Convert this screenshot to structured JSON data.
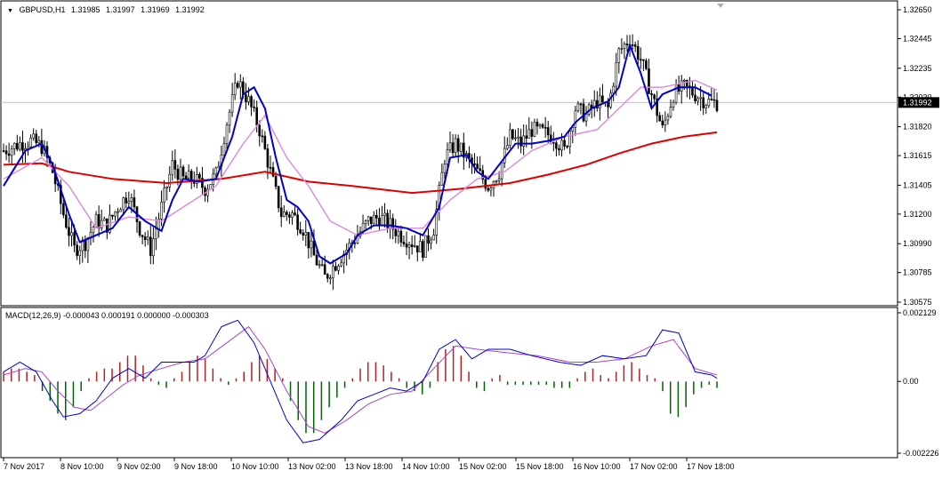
{
  "chart_data": [
    {
      "type": "candlestick",
      "panel": "price",
      "symbol": "GBPUSD,H1",
      "ohlc": {
        "open": "1.31985",
        "high": "1.31997",
        "low": "1.31969",
        "close": "1.31992"
      },
      "current_price_label": "1.31992",
      "y_ticks": [
        "1.32650",
        "1.32445",
        "1.32235",
        "1.32030",
        "1.31820",
        "1.31615",
        "1.31405",
        "1.31200",
        "1.30990",
        "1.30785",
        "1.30575"
      ],
      "ylim": [
        1.30575,
        1.3265
      ],
      "x_ticks": [
        "7 Nov 2017",
        "8 Nov 10:00",
        "9 Nov 02:00",
        "9 Nov 18:00",
        "10 Nov 10:00",
        "13 Nov 02:00",
        "13 Nov 18:00",
        "14 Nov 10:00",
        "15 Nov 02:00",
        "15 Nov 18:00",
        "16 Nov 10:00",
        "17 Nov 02:00",
        "17 Nov 18:00"
      ],
      "close_path": [
        [
          0,
          1.3165
        ],
        [
          6,
          1.317
        ],
        [
          10,
          1.3172
        ],
        [
          14,
          1.3168
        ],
        [
          18,
          1.315
        ],
        [
          22,
          1.312
        ],
        [
          26,
          1.3095
        ],
        [
          30,
          1.31
        ],
        [
          34,
          1.3115
        ],
        [
          38,
          1.3112
        ],
        [
          42,
          1.3125
        ],
        [
          46,
          1.3135
        ],
        [
          50,
          1.311
        ],
        [
          54,
          1.3095
        ],
        [
          58,
          1.3125
        ],
        [
          62,
          1.3155
        ],
        [
          66,
          1.3145
        ],
        [
          70,
          1.3145
        ],
        [
          74,
          1.3138
        ],
        [
          78,
          1.3148
        ],
        [
          82,
          1.3185
        ],
        [
          86,
          1.3215
        ],
        [
          90,
          1.32
        ],
        [
          94,
          1.318
        ],
        [
          98,
          1.315
        ],
        [
          102,
          1.312
        ],
        [
          106,
          1.312
        ],
        [
          110,
          1.311
        ],
        [
          114,
          1.309
        ],
        [
          118,
          1.3075
        ],
        [
          122,
          1.3085
        ],
        [
          126,
          1.3095
        ],
        [
          130,
          1.3105
        ],
        [
          134,
          1.3115
        ],
        [
          138,
          1.3118
        ],
        [
          142,
          1.3112
        ],
        [
          146,
          1.3105
        ],
        [
          150,
          1.31
        ],
        [
          154,
          1.3095
        ],
        [
          158,
          1.311
        ],
        [
          162,
          1.316
        ],
        [
          166,
          1.317
        ],
        [
          170,
          1.316
        ],
        [
          174,
          1.315
        ],
        [
          178,
          1.314
        ],
        [
          182,
          1.315
        ],
        [
          186,
          1.3175
        ],
        [
          190,
          1.317
        ],
        [
          194,
          1.318
        ],
        [
          198,
          1.3178
        ],
        [
          202,
          1.3175
        ],
        [
          206,
          1.3165
        ],
        [
          210,
          1.3195
        ],
        [
          214,
          1.319
        ],
        [
          218,
          1.32
        ],
        [
          222,
          1.3195
        ],
        [
          226,
          1.3235
        ],
        [
          230,
          1.3245
        ],
        [
          234,
          1.323
        ],
        [
          238,
          1.3205
        ],
        [
          242,
          1.318
        ],
        [
          246,
          1.3205
        ],
        [
          250,
          1.321
        ],
        [
          254,
          1.3205
        ],
        [
          258,
          1.32
        ],
        [
          262,
          1.3199
        ]
      ],
      "series": [
        {
          "name": "",
          "color": "#0000cc",
          "values": [
            [
              0,
              1.314
            ],
            [
              8,
              1.3165
            ],
            [
              14,
              1.317
            ],
            [
              18,
              1.3155
            ],
            [
              24,
              1.312
            ],
            [
              28,
              1.31
            ],
            [
              34,
              1.3105
            ],
            [
              40,
              1.311
            ],
            [
              46,
              1.3125
            ],
            [
              52,
              1.3115
            ],
            [
              58,
              1.3108
            ],
            [
              62,
              1.313
            ],
            [
              66,
              1.3145
            ],
            [
              72,
              1.3143
            ],
            [
              78,
              1.3145
            ],
            [
              84,
              1.3175
            ],
            [
              88,
              1.3205
            ],
            [
              92,
              1.321
            ],
            [
              96,
              1.3195
            ],
            [
              100,
              1.316
            ],
            [
              104,
              1.313
            ],
            [
              108,
              1.3125
            ],
            [
              112,
              1.3115
            ],
            [
              116,
              1.309
            ],
            [
              120,
              1.3085
            ],
            [
              126,
              1.3092
            ],
            [
              130,
              1.3105
            ],
            [
              136,
              1.3112
            ],
            [
              142,
              1.3112
            ],
            [
              148,
              1.311
            ],
            [
              154,
              1.3105
            ],
            [
              160,
              1.3125
            ],
            [
              164,
              1.316
            ],
            [
              170,
              1.3162
            ],
            [
              174,
              1.315
            ],
            [
              178,
              1.3145
            ],
            [
              184,
              1.316
            ],
            [
              188,
              1.317
            ],
            [
              194,
              1.317
            ],
            [
              200,
              1.3172
            ],
            [
              206,
              1.3175
            ],
            [
              210,
              1.3185
            ],
            [
              216,
              1.3195
            ],
            [
              222,
              1.32
            ],
            [
              226,
              1.321
            ],
            [
              230,
              1.324
            ],
            [
              234,
              1.322
            ],
            [
              238,
              1.3195
            ],
            [
              242,
              1.3205
            ],
            [
              248,
              1.321
            ],
            [
              254,
              1.321
            ],
            [
              260,
              1.3204
            ]
          ]
        },
        {
          "name": "",
          "color": "#dd88dd",
          "values": [
            [
              0,
              1.3145
            ],
            [
              14,
              1.316
            ],
            [
              24,
              1.314
            ],
            [
              34,
              1.311
            ],
            [
              46,
              1.3118
            ],
            [
              58,
              1.3115
            ],
            [
              66,
              1.3125
            ],
            [
              78,
              1.314
            ],
            [
              88,
              1.317
            ],
            [
              96,
              1.319
            ],
            [
              104,
              1.316
            ],
            [
              112,
              1.314
            ],
            [
              120,
              1.3115
            ],
            [
              130,
              1.3105
            ],
            [
              142,
              1.311
            ],
            [
              154,
              1.311
            ],
            [
              164,
              1.313
            ],
            [
              174,
              1.3145
            ],
            [
              184,
              1.315
            ],
            [
              194,
              1.3165
            ],
            [
              206,
              1.3175
            ],
            [
              218,
              1.318
            ],
            [
              226,
              1.3195
            ],
            [
              234,
              1.321
            ],
            [
              242,
              1.321
            ],
            [
              254,
              1.3215
            ],
            [
              262,
              1.3208
            ]
          ]
        },
        {
          "name": "",
          "color": "#dd0000",
          "values": [
            [
              0,
              1.3155
            ],
            [
              14,
              1.3156
            ],
            [
              24,
              1.315
            ],
            [
              40,
              1.3145
            ],
            [
              60,
              1.3142
            ],
            [
              80,
              1.3145
            ],
            [
              96,
              1.315
            ],
            [
              112,
              1.3143
            ],
            [
              128,
              1.314
            ],
            [
              150,
              1.3135
            ],
            [
              168,
              1.3138
            ],
            [
              186,
              1.3142
            ],
            [
              200,
              1.3148
            ],
            [
              214,
              1.3155
            ],
            [
              226,
              1.3163
            ],
            [
              238,
              1.317
            ],
            [
              250,
              1.3175
            ],
            [
              262,
              1.3178
            ]
          ]
        }
      ]
    },
    {
      "type": "histogram",
      "panel": "indicator",
      "title": "MACD(12,26,9) -0.000043 0.000191 0.000000 -0.000303",
      "y_ticks": [
        "0.002129",
        "0.00",
        "-0.002226"
      ],
      "ylim": [
        -0.002226,
        0.002129
      ],
      "histogram": [
        0.0003,
        0.0004,
        0.0004,
        0.0003,
        0.0002,
        -0.0003,
        -0.0006,
        -0.001,
        -0.0012,
        -0.0008,
        -0.0003,
        0.0001,
        0.0003,
        0.0004,
        0.0004,
        0.0006,
        0.0008,
        0.0008,
        0.0005,
        0.0001,
        -0.0001,
        -0.0002,
        0.0001,
        0.0003,
        0.0006,
        0.0008,
        0.0007,
        0.0004,
        0.0001,
        -0.0001,
        0.0001,
        0.0003,
        0.0006,
        0.0008,
        0.0007,
        0.0004,
        0.0001,
        -0.0006,
        -0.0012,
        -0.0016,
        -0.0016,
        -0.0012,
        -0.0008,
        -0.0005,
        -0.0002,
        0.0001,
        0.0004,
        0.0006,
        0.0006,
        0.0005,
        0.0003,
        0.0001,
        -0.0002,
        -0.0003,
        -0.0004,
        -0.0002,
        0.0006,
        0.001,
        0.0011,
        0.0008,
        0.0003,
        -0.0002,
        -0.0003,
        0.0001,
        0.0002,
        -0.0001,
        -0.0001,
        -0.0001,
        -0.0001,
        -0.0001,
        -0.0001,
        -0.0002,
        -0.0002,
        -0.0002,
        0.0001,
        0.0003,
        0.0004,
        0.0002,
        0.0001,
        0.0003,
        0.0005,
        0.0006,
        0.0004,
        0.0002,
        0.0001,
        -0.0003,
        -0.001,
        -0.0011,
        -0.0008,
        -0.0004,
        -0.0002,
        -0.0001,
        -0.0002
      ],
      "series": [
        {
          "name": "",
          "color": "#0000cc",
          "values": [
            [
              0,
              0.0003
            ],
            [
              6,
              0.0006
            ],
            [
              12,
              0.0003
            ],
            [
              18,
              -0.0006
            ],
            [
              22,
              -0.0011
            ],
            [
              28,
              -0.001
            ],
            [
              34,
              -0.0006
            ],
            [
              40,
              0.0001
            ],
            [
              46,
              0.0004
            ],
            [
              52,
              0.0001
            ],
            [
              58,
              0.0006
            ],
            [
              64,
              0.0006
            ],
            [
              70,
              0.0006
            ],
            [
              74,
              0.0008
            ],
            [
              80,
              0.0017
            ],
            [
              86,
              0.0019
            ],
            [
              92,
              0.0012
            ],
            [
              98,
              0.0
            ],
            [
              104,
              -0.0012
            ],
            [
              110,
              -0.0019
            ],
            [
              116,
              -0.0018
            ],
            [
              124,
              -0.0012
            ],
            [
              130,
              -0.0006
            ],
            [
              136,
              -0.0004
            ],
            [
              142,
              -0.0002
            ],
            [
              148,
              -0.0003
            ],
            [
              154,
              0.0
            ],
            [
              160,
              0.001
            ],
            [
              166,
              0.0013
            ],
            [
              172,
              0.0007
            ],
            [
              178,
              0.001
            ],
            [
              186,
              0.001
            ],
            [
              194,
              0.0008
            ],
            [
              204,
              0.0006
            ],
            [
              212,
              0.0005
            ],
            [
              220,
              0.0008
            ],
            [
              228,
              0.0007
            ],
            [
              236,
              0.0008
            ],
            [
              242,
              0.0016
            ],
            [
              248,
              0.0015
            ],
            [
              254,
              0.0003
            ],
            [
              260,
              0.0002
            ],
            [
              262,
              0.0001
            ]
          ]
        },
        {
          "name": "",
          "color": "#aa44cc",
          "values": [
            [
              0,
              0.0002
            ],
            [
              8,
              0.0004
            ],
            [
              14,
              0.0003
            ],
            [
              20,
              -0.0003
            ],
            [
              26,
              -0.0008
            ],
            [
              32,
              -0.0009
            ],
            [
              38,
              -0.0005
            ],
            [
              44,
              -0.0001
            ],
            [
              50,
              0.0002
            ],
            [
              58,
              0.0004
            ],
            [
              66,
              0.0006
            ],
            [
              74,
              0.0007
            ],
            [
              82,
              0.0012
            ],
            [
              90,
              0.0017
            ],
            [
              96,
              0.001
            ],
            [
              104,
              -0.0003
            ],
            [
              112,
              -0.0014
            ],
            [
              118,
              -0.0016
            ],
            [
              126,
              -0.0012
            ],
            [
              134,
              -0.0007
            ],
            [
              142,
              -0.0004
            ],
            [
              150,
              -0.0003
            ],
            [
              158,
              0.0004
            ],
            [
              166,
              0.0011
            ],
            [
              174,
              0.001
            ],
            [
              184,
              0.0009
            ],
            [
              196,
              0.0008
            ],
            [
              208,
              0.0006
            ],
            [
              218,
              0.0006
            ],
            [
              228,
              0.0007
            ],
            [
              238,
              0.0011
            ],
            [
              246,
              0.0013
            ],
            [
              254,
              0.0004
            ],
            [
              262,
              0.0002
            ]
          ]
        }
      ]
    }
  ]
}
